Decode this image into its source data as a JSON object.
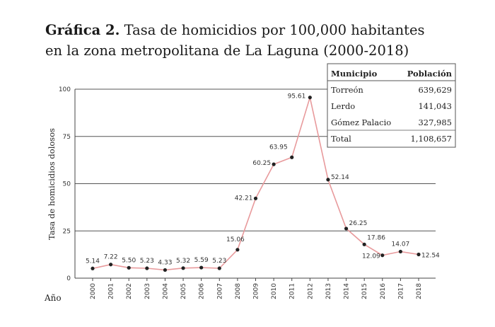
{
  "title": {
    "prefix": "Gráfica 2.",
    "text": "Tasa de homicidios por 100,000 habitantes en la zona metropolitana de La Laguna (2000-2018)"
  },
  "chart_data": {
    "type": "line",
    "title": "Tasa de homicidios por 100,000 habitantes en la zona metropolitana de La Laguna (2000-2018)",
    "xlabel": "Año",
    "ylabel": "Tasa de homicidios dolosos",
    "ylim": [
      0,
      100
    ],
    "yticks": [
      0,
      25,
      50,
      75,
      100
    ],
    "grid": true,
    "categories": [
      "2000",
      "2001",
      "2002",
      "2003",
      "2004",
      "2005",
      "2006",
      "2007",
      "2008",
      "2009",
      "2010",
      "2011",
      "2012",
      "2013",
      "2014",
      "2015",
      "2016",
      "2017",
      "2018"
    ],
    "values": [
      5.14,
      7.22,
      5.5,
      5.23,
      4.33,
      5.32,
      5.59,
      5.23,
      15.06,
      42.21,
      60.25,
      63.95,
      95.61,
      52.14,
      26.25,
      17.86,
      12.09,
      14.07,
      12.54
    ],
    "labels": [
      "5.14",
      "7.22",
      "5.50",
      "5.23",
      "4.33",
      "5.32",
      "5.59",
      "5.23",
      "15.06",
      "42.21",
      "60.25",
      "63.95",
      "95.61",
      "52.14",
      "26.25",
      "17.86",
      "12.09",
      "14.07",
      "12.54"
    ],
    "line_color": "#e89a9c",
    "marker_color": "#222222"
  },
  "table": {
    "headers": [
      "Municipio",
      "Población"
    ],
    "rows": [
      [
        "Torreón",
        "639,629"
      ],
      [
        "Lerdo",
        "141,043"
      ],
      [
        "Gómez Palacio",
        "327,985"
      ],
      [
        "Total",
        "1,108,657"
      ]
    ]
  }
}
